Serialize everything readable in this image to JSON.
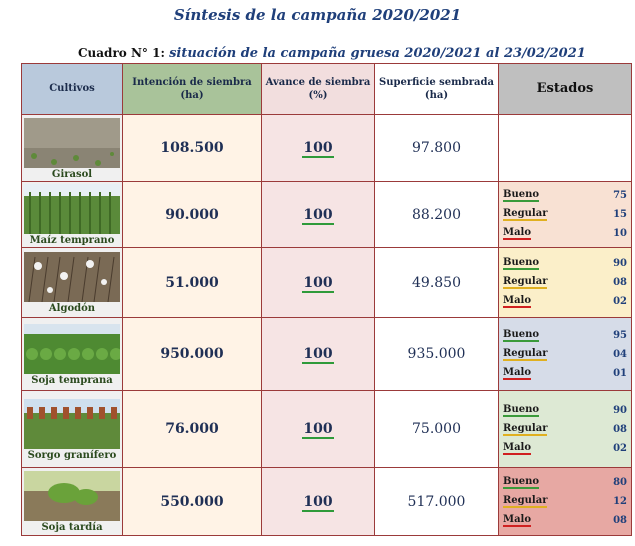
{
  "title": "Síntesis de la campaña 2020/2021",
  "caption": {
    "label": "Cuadro N° 1:",
    "text": "situación de la campaña gruesa 2020/2021 al  23/02/2021"
  },
  "headers": {
    "cultivos": "Cultivos",
    "intencion_l1": "Intención de siembra",
    "intencion_l2": "(ha)",
    "avance_l1": "Avance de siembra",
    "avance_l2": "(%)",
    "superficie_l1": "Superficie sembrada",
    "superficie_l2": "(ha)",
    "estados": "Estados"
  },
  "rows": [
    {
      "crop": "Girasol",
      "icon": "sunflower-field-photo",
      "intencion": "108.500",
      "avance": "100",
      "superficie": "97.800",
      "estados": null
    },
    {
      "crop": "Maíz temprano",
      "icon": "corn-field-photo",
      "intencion": "90.000",
      "avance": "100",
      "superficie": "88.200",
      "estados": {
        "bueno_label": "Bueno",
        "bueno": "75",
        "regular_label": "Regular",
        "regular": "15",
        "malo_label": "Malo",
        "malo": "10"
      }
    },
    {
      "crop": "Algodón",
      "icon": "cotton-field-photo",
      "intencion": "51.000",
      "avance": "100",
      "superficie": "49.850",
      "estados": {
        "bueno_label": "Bueno",
        "bueno": "90",
        "regular_label": "Regular",
        "regular": "08",
        "malo_label": "Malo",
        "malo": "02"
      }
    },
    {
      "crop": "Soja temprana",
      "icon": "soy-field-photo",
      "intencion": "950.000",
      "avance": "100",
      "superficie": "935.000",
      "estados": {
        "bueno_label": "Bueno",
        "bueno": "95",
        "regular_label": "Regular",
        "regular": "04",
        "malo_label": "Malo",
        "malo": "01"
      }
    },
    {
      "crop": "Sorgo granífero",
      "icon": "sorghum-field-photo",
      "intencion": "76.000",
      "avance": "100",
      "superficie": "75.000",
      "estados": {
        "bueno_label": "Bueno",
        "bueno": "90",
        "regular_label": "Regular",
        "regular": "08",
        "malo_label": "Malo",
        "malo": "02"
      }
    },
    {
      "crop": "Soja tardía",
      "icon": "late-soy-field-photo",
      "intencion": "550.000",
      "avance": "100",
      "superficie": "517.000",
      "estados": {
        "bueno_label": "Bueno",
        "bueno": "80",
        "regular_label": "Regular",
        "regular": "12",
        "malo_label": "Malo",
        "malo": "08"
      }
    }
  ],
  "estado_colors": [
    "#ffffff",
    "#f8e1d3",
    "#fbefc9",
    "#d6dce8",
    "#dde9d4",
    "#e7a8a3"
  ],
  "colors": {
    "border": "#9b3a3a",
    "title": "#1f3f7a",
    "bueno_underline": "#3a9a3a",
    "regular_underline": "#e0b020",
    "malo_underline": "#d02020"
  }
}
